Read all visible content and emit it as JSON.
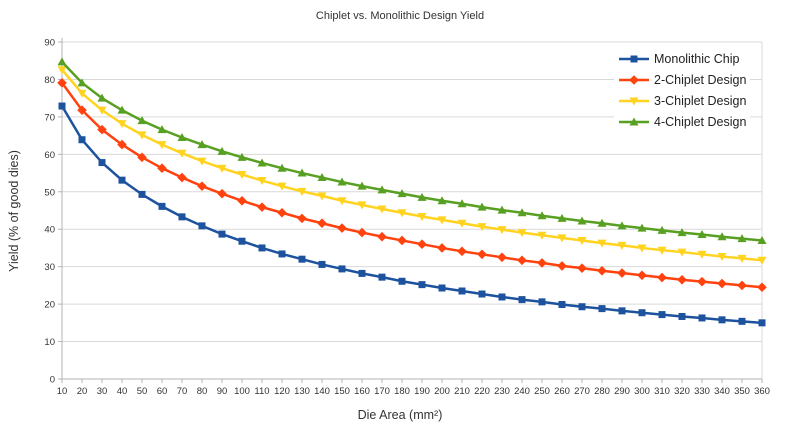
{
  "title": "Chiplet vs. Monolithic Design Yield",
  "chart_data": {
    "type": "line",
    "title": "Chiplet vs. Monolithic Design Yield",
    "xlabel": "Die Area (mm²)",
    "ylabel": "Yield (% of good dies)",
    "xlim": [
      10,
      360
    ],
    "ylim": [
      0,
      90
    ],
    "y_ticks": [
      0,
      10,
      20,
      30,
      40,
      50,
      60,
      70,
      80,
      90
    ],
    "grid": "horizontal",
    "grid_color": "#d9d9d9",
    "axis_color": "#b3b3b3",
    "text_color": "#333333",
    "legend_position": "top-right",
    "x": [
      10,
      20,
      30,
      40,
      50,
      60,
      70,
      80,
      90,
      100,
      110,
      120,
      130,
      140,
      150,
      160,
      170,
      180,
      190,
      200,
      210,
      220,
      230,
      240,
      250,
      260,
      270,
      280,
      290,
      300,
      310,
      320,
      330,
      340,
      350,
      360
    ],
    "series": [
      {
        "name": "Monolithic Chip",
        "marker": "square",
        "color": "#1d529e",
        "values": [
          72.9,
          63.9,
          57.8,
          53.1,
          49.3,
          46.1,
          43.3,
          40.9,
          38.7,
          36.8,
          35.0,
          33.4,
          32.0,
          30.6,
          29.4,
          28.2,
          27.2,
          26.1,
          25.2,
          24.3,
          23.5,
          22.7,
          21.9,
          21.2,
          20.6,
          19.9,
          19.3,
          18.8,
          18.2,
          17.7,
          17.2,
          16.7,
          16.3,
          15.8,
          15.4,
          15.0
        ]
      },
      {
        "name": "2-Chiplet Design",
        "marker": "diamond",
        "color": "#ff420e",
        "values": [
          79.1,
          71.8,
          66.6,
          62.6,
          59.2,
          56.3,
          53.8,
          51.5,
          49.5,
          47.6,
          45.9,
          44.4,
          42.9,
          41.6,
          40.3,
          39.1,
          38.0,
          37.0,
          36.0,
          35.0,
          34.1,
          33.3,
          32.5,
          31.7,
          31.0,
          30.2,
          29.6,
          28.9,
          28.3,
          27.7,
          27.1,
          26.5,
          26.0,
          25.5,
          25.0,
          24.5
        ]
      },
      {
        "name": "3-Chiplet Design",
        "marker": "triangle-down",
        "color": "#ffd320",
        "values": [
          82.6,
          76.3,
          71.8,
          68.2,
          65.2,
          62.6,
          60.3,
          58.2,
          56.3,
          54.6,
          53.0,
          51.5,
          50.1,
          48.9,
          47.6,
          46.5,
          45.4,
          44.4,
          43.4,
          42.5,
          41.6,
          40.7,
          39.9,
          39.1,
          38.4,
          37.7,
          37.0,
          36.3,
          35.7,
          35.0,
          34.4,
          33.9,
          33.3,
          32.7,
          32.2,
          31.7
        ]
      },
      {
        "name": "4-Chiplet Design",
        "marker": "triangle-up",
        "color": "#57a021",
        "values": [
          84.7,
          79.1,
          75.0,
          71.8,
          69.0,
          66.6,
          64.5,
          62.6,
          60.8,
          59.2,
          57.7,
          56.3,
          55.0,
          53.8,
          52.6,
          51.5,
          50.5,
          49.5,
          48.5,
          47.6,
          46.8,
          45.9,
          45.1,
          44.4,
          43.6,
          42.9,
          42.2,
          41.6,
          40.9,
          40.3,
          39.7,
          39.1,
          38.6,
          38.0,
          37.5,
          37.0
        ]
      }
    ]
  }
}
